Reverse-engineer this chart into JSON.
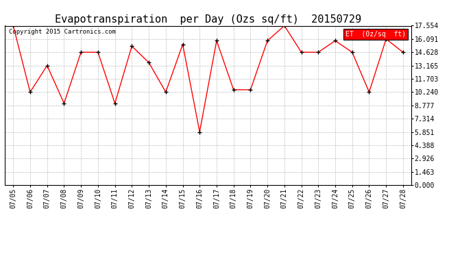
{
  "title": "Evapotranspiration  per Day (Ozs sq/ft)  20150729",
  "legend_label": "ET  (0z/sq  ft)",
  "copyright": "Copyright 2015 Cartronics.com",
  "dates": [
    "07/05",
    "07/06",
    "07/07",
    "07/08",
    "07/09",
    "07/10",
    "07/11",
    "07/12",
    "07/13",
    "07/14",
    "07/15",
    "07/16",
    "07/17",
    "07/18",
    "07/19",
    "07/20",
    "07/21",
    "07/22",
    "07/23",
    "07/24",
    "07/25",
    "07/26",
    "07/27",
    "07/28"
  ],
  "values": [
    17.554,
    10.24,
    13.165,
    9.0,
    14.628,
    14.628,
    9.0,
    15.3,
    13.5,
    10.24,
    15.5,
    5.851,
    15.9,
    10.5,
    10.5,
    15.9,
    17.554,
    14.628,
    14.628,
    15.9,
    14.628,
    10.24,
    16.091,
    14.628
  ],
  "ylim": [
    0.0,
    17.554
  ],
  "yticks": [
    0.0,
    1.463,
    2.926,
    4.388,
    5.851,
    7.314,
    8.777,
    10.24,
    11.703,
    13.165,
    14.628,
    16.091,
    17.554
  ],
  "line_color": "red",
  "marker_color": "black",
  "bg_color": "#ffffff",
  "grid_color": "#bbbbbb",
  "legend_bg": "red",
  "legend_text_color": "white",
  "title_fontsize": 11,
  "tick_fontsize": 7,
  "copyright_fontsize": 6.5
}
